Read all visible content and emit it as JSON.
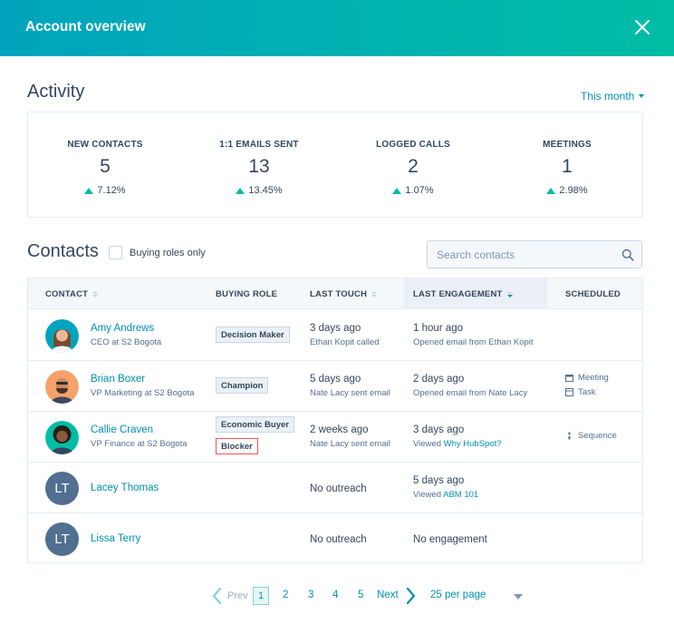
{
  "header": {
    "title": "Account overview"
  },
  "activity": {
    "title": "Activity",
    "period": "This month",
    "metrics": [
      {
        "label": "NEW CONTACTS",
        "value": "5",
        "change": "7.12%"
      },
      {
        "label": "1:1 EMAILS SENT",
        "value": "13",
        "change": "13.45%"
      },
      {
        "label": "LOGGED CALLS",
        "value": "2",
        "change": "1.07%"
      },
      {
        "label": "MEETINGS",
        "value": "1",
        "change": "2.98%"
      }
    ]
  },
  "contacts": {
    "title": "Contacts",
    "buying_roles_label": "Buying roles only",
    "search_placeholder": "Search contacts",
    "columns": {
      "contact": "CONTACT",
      "buying_role": "BUYING ROLE",
      "last_touch": "LAST TOUCH",
      "last_engagement": "LAST ENGAGEMENT",
      "scheduled": "SCHEDULED"
    },
    "rows": [
      {
        "name": "Amy Andrews",
        "subtitle": "CEO at S2 Bogota",
        "roles": [
          "Decision Maker"
        ],
        "touch": "3 days ago",
        "touch_sub": "Ethan Kopit called",
        "engagement": "1 hour ago",
        "engagement_sub": "Opened email from Ethan Kopit"
      },
      {
        "name": "Brian Boxer",
        "subtitle": "VP Marketing at S2 Bogota",
        "roles": [
          "Champion"
        ],
        "touch": "5 days ago",
        "touch_sub": "Nate Lacy sent email",
        "engagement": "2 days ago",
        "engagement_sub": "Opened email from Nate Lacy",
        "scheduled": [
          "Meeting",
          "Task"
        ]
      },
      {
        "name": "Callie Craven",
        "subtitle": "VP Finance at S2 Bogota",
        "roles": [
          "Economic Buyer",
          "Blocker"
        ],
        "touch": "2 weeks ago",
        "touch_sub": "Nate Lacy sent email",
        "engagement": "3 days ago",
        "engagement_sub_prefix": "Viewed",
        "engagement_sub_link": "Why HubSpot?",
        "scheduled": [
          "Sequence"
        ]
      },
      {
        "name": "Lacey Thomas",
        "initials": "LT",
        "touch": "No outreach",
        "engagement": "5 days ago",
        "engagement_sub_prefix": "Viewed",
        "engagement_sub_link": "ABM 101"
      },
      {
        "name": "Lissa Terry",
        "initials": "LT",
        "touch": "No outreach",
        "engagement": "No engagement"
      }
    ]
  },
  "pagination": {
    "prev": "Prev",
    "pages": [
      "1",
      "2",
      "3",
      "4",
      "5"
    ],
    "current": "1",
    "next": "Next",
    "per_page": "25 per page"
  },
  "colors": {
    "header_start": "#00a4bd",
    "header_end": "#00bda5",
    "link": "#0091ae",
    "text": "#33475b",
    "positive": "#00bda5",
    "blocker": "#f2545b"
  }
}
